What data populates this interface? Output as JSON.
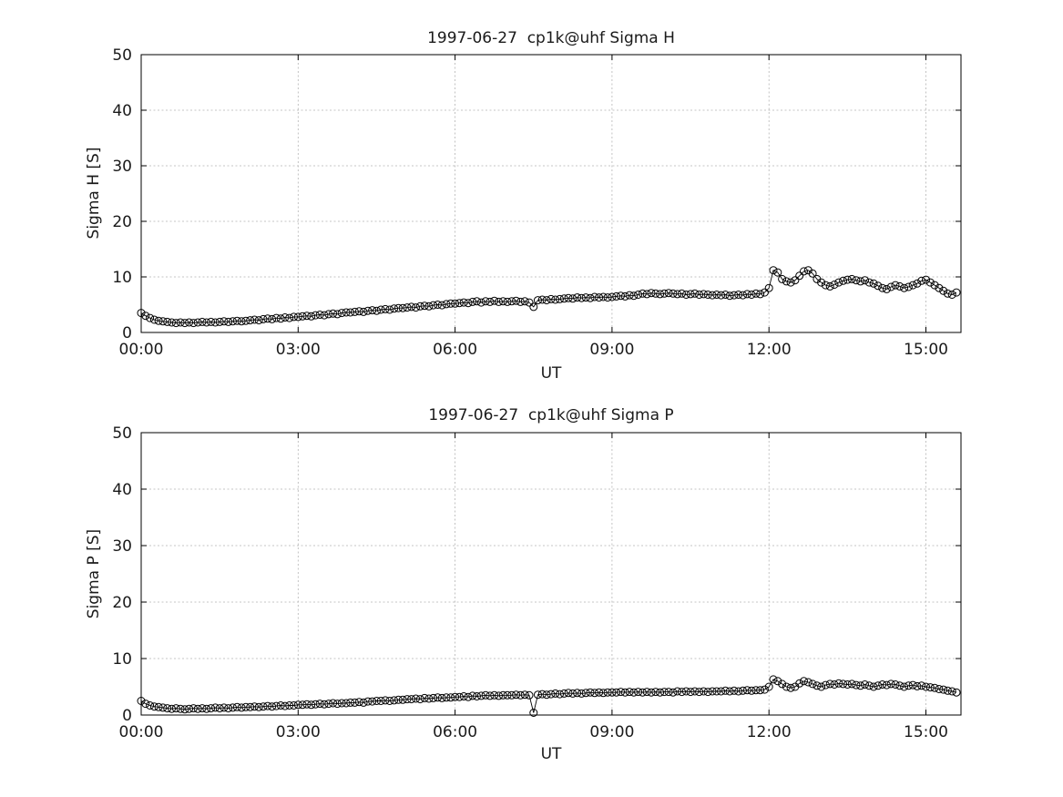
{
  "page": {
    "background": "#ffffff",
    "axis_color": "#000000",
    "grid_color": "#b4b4b4"
  },
  "chart_data": [
    {
      "type": "line",
      "marker": "circle",
      "title": "1997-06-27  cp1k@uhf Sigma H",
      "xlabel": "UT",
      "ylabel": "Sigma H [S]",
      "ylim": [
        0,
        50
      ],
      "yticks": [
        0,
        10,
        20,
        30,
        40,
        50
      ],
      "xlim_hours": [
        0,
        15.67
      ],
      "xticks_hours": [
        0,
        3,
        6,
        9,
        12,
        15
      ],
      "xtick_labels": [
        "00:00",
        "03:00",
        "06:00",
        "09:00",
        "12:00",
        "15:00"
      ],
      "grid": true,
      "legend": "none",
      "line_color": "#000000",
      "x_start_hours": 0,
      "x_step_minutes": 5,
      "values": [
        3.5,
        3.0,
        2.6,
        2.3,
        2.1,
        2.0,
        1.9,
        1.8,
        1.7,
        1.8,
        1.7,
        1.8,
        1.7,
        1.8,
        1.9,
        1.8,
        1.9,
        1.8,
        1.9,
        2.0,
        1.9,
        2.0,
        2.1,
        2.0,
        2.1,
        2.2,
        2.3,
        2.2,
        2.4,
        2.5,
        2.4,
        2.6,
        2.5,
        2.7,
        2.6,
        2.8,
        2.8,
        2.9,
        3.0,
        2.9,
        3.1,
        3.2,
        3.1,
        3.3,
        3.4,
        3.3,
        3.5,
        3.6,
        3.6,
        3.7,
        3.8,
        3.7,
        3.9,
        4.0,
        3.9,
        4.1,
        4.2,
        4.1,
        4.3,
        4.4,
        4.4,
        4.5,
        4.6,
        4.5,
        4.7,
        4.8,
        4.7,
        4.9,
        5.0,
        4.9,
        5.1,
        5.2,
        5.2,
        5.3,
        5.4,
        5.3,
        5.5,
        5.6,
        5.4,
        5.6,
        5.5,
        5.7,
        5.5,
        5.6,
        5.5,
        5.6,
        5.7,
        5.5,
        5.6,
        5.4,
        4.6,
        5.8,
        5.9,
        5.8,
        6.0,
        5.9,
        6.0,
        6.1,
        6.2,
        6.1,
        6.3,
        6.2,
        6.3,
        6.2,
        6.4,
        6.3,
        6.4,
        6.3,
        6.4,
        6.5,
        6.6,
        6.5,
        6.7,
        6.6,
        6.8,
        7.0,
        6.9,
        7.1,
        7.0,
        6.9,
        7.0,
        7.1,
        7.0,
        6.9,
        7.0,
        6.8,
        6.9,
        7.0,
        6.8,
        6.9,
        6.8,
        6.7,
        6.8,
        6.7,
        6.8,
        6.6,
        6.7,
        6.8,
        6.7,
        6.9,
        6.8,
        7.0,
        6.9,
        7.2,
        8.0,
        11.2,
        10.8,
        9.6,
        9.2,
        9.0,
        9.4,
        10.2,
        11.0,
        11.2,
        10.6,
        9.6,
        9.0,
        8.5,
        8.3,
        8.6,
        9.0,
        9.3,
        9.5,
        9.6,
        9.4,
        9.2,
        9.4,
        9.0,
        8.8,
        8.4,
        8.0,
        7.8,
        8.2,
        8.5,
        8.3,
        8.0,
        8.2,
        8.5,
        8.8,
        9.3,
        9.5,
        9.0,
        8.5,
        8.0,
        7.5,
        7.0,
        6.8,
        7.2
      ]
    },
    {
      "type": "line",
      "marker": "circle",
      "title": "1997-06-27  cp1k@uhf Sigma P",
      "xlabel": "UT",
      "ylabel": "Sigma P [S]",
      "ylim": [
        0,
        50
      ],
      "yticks": [
        0,
        10,
        20,
        30,
        40,
        50
      ],
      "xlim_hours": [
        0,
        15.67
      ],
      "xticks_hours": [
        0,
        3,
        6,
        9,
        12,
        15
      ],
      "xtick_labels": [
        "00:00",
        "03:00",
        "06:00",
        "09:00",
        "12:00",
        "15:00"
      ],
      "grid": true,
      "legend": "none",
      "line_color": "#000000",
      "x_start_hours": 0,
      "x_step_minutes": 5,
      "values": [
        2.5,
        2.0,
        1.7,
        1.5,
        1.4,
        1.3,
        1.2,
        1.1,
        1.2,
        1.1,
        1.0,
        1.1,
        1.2,
        1.1,
        1.2,
        1.1,
        1.2,
        1.3,
        1.2,
        1.3,
        1.2,
        1.3,
        1.4,
        1.3,
        1.4,
        1.4,
        1.5,
        1.4,
        1.5,
        1.6,
        1.5,
        1.6,
        1.7,
        1.6,
        1.7,
        1.7,
        1.8,
        1.8,
        1.9,
        1.8,
        1.9,
        2.0,
        1.9,
        2.0,
        2.1,
        2.0,
        2.1,
        2.1,
        2.2,
        2.2,
        2.3,
        2.2,
        2.4,
        2.4,
        2.5,
        2.5,
        2.6,
        2.5,
        2.6,
        2.7,
        2.7,
        2.8,
        2.8,
        2.9,
        2.8,
        3.0,
        2.9,
        3.0,
        3.1,
        3.0,
        3.1,
        3.1,
        3.2,
        3.2,
        3.3,
        3.2,
        3.4,
        3.3,
        3.4,
        3.5,
        3.4,
        3.5,
        3.4,
        3.5,
        3.5,
        3.5,
        3.6,
        3.5,
        3.6,
        3.5,
        0.4,
        3.6,
        3.7,
        3.6,
        3.7,
        3.8,
        3.7,
        3.8,
        3.9,
        3.8,
        3.9,
        3.8,
        3.9,
        4.0,
        3.9,
        4.0,
        3.9,
        4.0,
        4.0,
        4.0,
        4.1,
        4.0,
        4.1,
        4.0,
        4.1,
        4.0,
        4.1,
        4.0,
        4.1,
        4.0,
        4.1,
        4.1,
        4.0,
        4.2,
        4.1,
        4.2,
        4.1,
        4.2,
        4.1,
        4.2,
        4.1,
        4.2,
        4.2,
        4.2,
        4.3,
        4.2,
        4.3,
        4.2,
        4.3,
        4.4,
        4.3,
        4.4,
        4.4,
        4.5,
        5.0,
        6.3,
        6.0,
        5.5,
        5.0,
        4.8,
        5.0,
        5.6,
        6.0,
        5.8,
        5.5,
        5.2,
        5.0,
        5.3,
        5.5,
        5.4,
        5.6,
        5.5,
        5.4,
        5.5,
        5.3,
        5.2,
        5.4,
        5.2,
        5.0,
        5.2,
        5.4,
        5.3,
        5.5,
        5.4,
        5.2,
        5.0,
        5.2,
        5.3,
        5.1,
        5.2,
        5.0,
        4.9,
        4.8,
        4.6,
        4.5,
        4.3,
        4.2,
        4.0
      ]
    }
  ]
}
